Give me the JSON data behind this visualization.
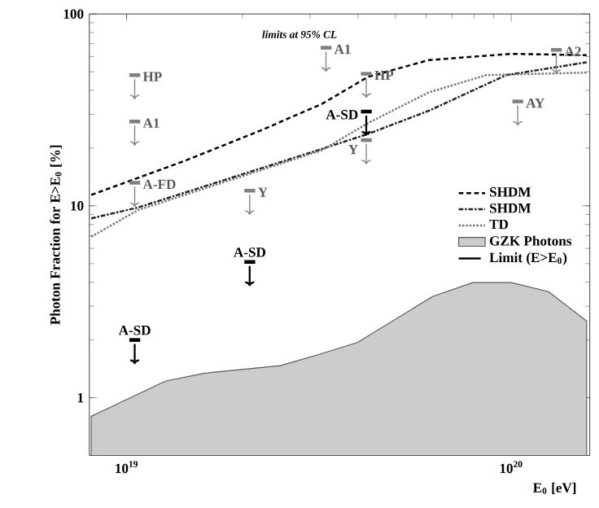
{
  "chart_data": {
    "type": "line",
    "xlabel": "E$_{0}$ [eV]",
    "ylabel": "Photon Fraction for E>E$_{0}$ [%]",
    "log": "xy",
    "xlim": [
      8e+18,
      1.6e+20
    ],
    "ylim": [
      0.5,
      100
    ],
    "xticks": [
      {
        "value": 1e+19,
        "label": "10$^{19}$"
      },
      {
        "value": 1e+20,
        "label": "10$^{20}$"
      }
    ],
    "yticks": [
      1,
      10,
      100
    ],
    "legend": "right",
    "series": [
      {
        "name": "SHDM",
        "color": "#000000",
        "line_style": "dashed",
        "x": [
          8.09e+18,
          1.41e+19,
          2.23e+19,
          3.22e+19,
          4.24e+19,
          6.1e+19,
          1e+20,
          1.57e+20
        ],
        "values": [
          11.4,
          17.1,
          24.7,
          34,
          47,
          57.5,
          62,
          61
        ]
      },
      {
        "name": "SHDM",
        "color": "#222222",
        "line_style": "dashdot",
        "x": [
          8.09e+18,
          1.07e+19,
          3.22e+19,
          4.24e+19,
          6.1e+19,
          9.7e+19,
          1.57e+20
        ],
        "values": [
          8.6,
          9.8,
          19.8,
          23.7,
          31.3,
          48,
          56
        ]
      },
      {
        "name": "TD",
        "color": "#777777",
        "line_style": "dotted",
        "x": [
          8.09e+18,
          1.07e+19,
          3.22e+19,
          4.24e+19,
          6.1e+19,
          8.6e+19,
          1.57e+20
        ],
        "values": [
          6.9,
          9.5,
          19.5,
          27,
          39,
          48,
          49.5
        ]
      },
      {
        "name": "GZK Photons",
        "type": "area",
        "color": "#cccccc",
        "x": [
          8.09e+18,
          1.26e+19,
          1.585e+19,
          2.51e+19,
          3.22e+19,
          3.98e+19,
          6.24e+19,
          7.94e+19,
          1e+20,
          1.25e+20,
          1.57e+20
        ],
        "values": [
          0.8,
          1.22,
          1.34,
          1.47,
          1.7,
          1.94,
          3.37,
          3.98,
          3.98,
          3.57,
          2.51
        ]
      },
      {
        "name": "Limit (E>E$_{0}$)",
        "type": "scatter",
        "color": "#000000",
        "x": [
          1.05e+19,
          2.09e+19,
          4.2e+19
        ],
        "values": [
          2.0,
          5.1,
          31
        ]
      },
      {
        "type": "scatter",
        "color": "#808080",
        "x": [
          1.05e+19,
          1.05e+19,
          1.05e+19,
          2.09e+19,
          3.3e+19,
          4.2e+19,
          4.2e+19,
          1.04e+20,
          1.31e+20
        ],
        "values": [
          48,
          27.5,
          13.2,
          12,
          66.7,
          48.8,
          22,
          35,
          65
        ]
      }
    ],
    "annotations": [
      "limits at 95% CL",
      {
        "text": "HP",
        "x": 1.05e+19,
        "y": 48
      },
      {
        "text": "A1",
        "x": 1.05e+19,
        "y": 27.5
      },
      {
        "text": "A-FD",
        "x": 1.05e+19,
        "y": 13.2
      },
      {
        "text": "Y",
        "x": 2.09e+19,
        "y": 12
      },
      {
        "text": "A-SD",
        "x": 1.05e+19,
        "y": 2.0
      },
      {
        "text": "A-SD",
        "x": 2.09e+19,
        "y": 5.1
      },
      {
        "text": "A1",
        "x": 3.3e+19,
        "y": 66.7
      },
      {
        "text": "HP",
        "x": 4.2e+19,
        "y": 48.8
      },
      {
        "text": "A-SD",
        "x": 4.2e+19,
        "y": 31
      },
      {
        "text": "Y",
        "x": 4.2e+19,
        "y": 22
      },
      {
        "text": "AY",
        "x": 1.04e+20,
        "y": 35
      },
      {
        "text": "A2",
        "x": 1.31e+20,
        "y": 65
      }
    ]
  }
}
